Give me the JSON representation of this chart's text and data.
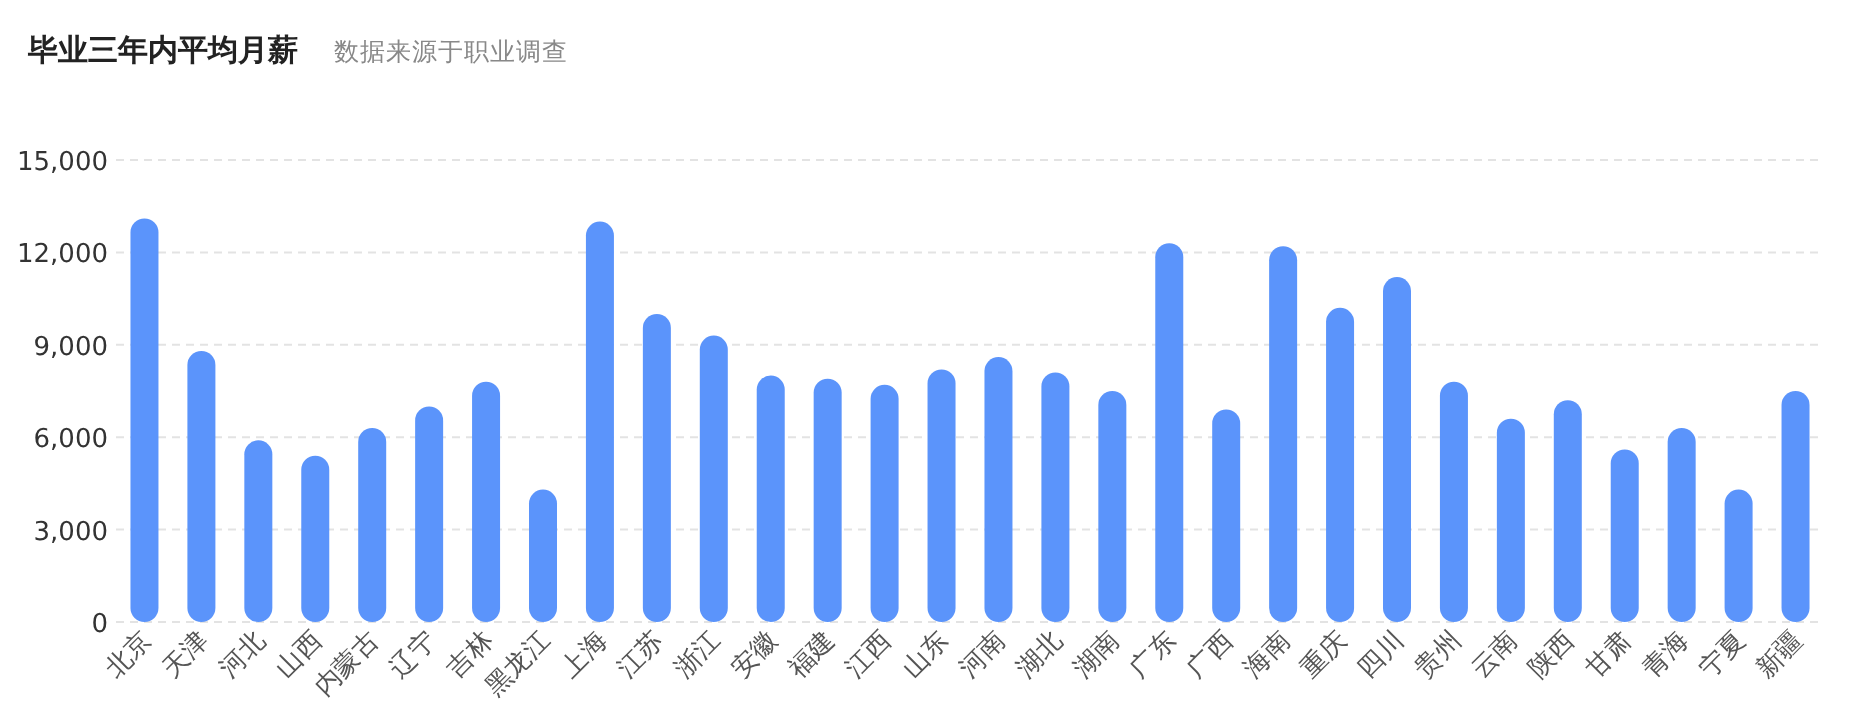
{
  "chart_data": {
    "type": "bar",
    "title": "毕业三年内平均月薪",
    "subtitle": "数据来源于职业调查",
    "categories": [
      "北京",
      "天津",
      "河北",
      "山西",
      "内蒙古",
      "辽宁",
      "吉林",
      "黑龙江",
      "上海",
      "江苏",
      "浙江",
      "安徽",
      "福建",
      "江西",
      "山东",
      "河南",
      "湖北",
      "湖南",
      "广东",
      "广西",
      "海南",
      "重庆",
      "四川",
      "贵州",
      "云南",
      "陕西",
      "甘肃",
      "青海",
      "宁夏",
      "新疆"
    ],
    "values": [
      13100,
      8800,
      5900,
      5400,
      6300,
      7000,
      7800,
      4300,
      13000,
      10000,
      9300,
      8000,
      7900,
      7700,
      8200,
      8600,
      8100,
      7500,
      12300,
      6900,
      12200,
      10200,
      11200,
      7800,
      6600,
      7200,
      5600,
      6300,
      4300,
      7500
    ],
    "color": "#5b94fb",
    "ylim": [
      0,
      15000
    ],
    "yticks": [
      {
        "value": 0,
        "label": "0"
      },
      {
        "value": 3000,
        "label": "3,000"
      },
      {
        "value": 6000,
        "label": "6,000"
      },
      {
        "value": 9000,
        "label": "9,000"
      },
      {
        "value": 12000,
        "label": "12,000"
      },
      {
        "value": 15000,
        "label": "15,000"
      }
    ],
    "grid": "y"
  }
}
